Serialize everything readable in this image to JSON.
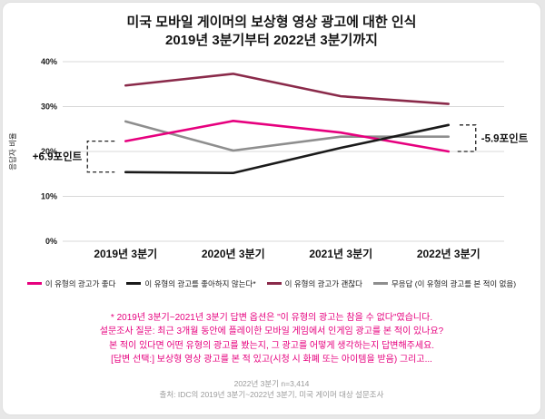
{
  "title": "미국 모바일 게이머의 보상형 영상 광고에 대한 인식",
  "subtitle": "2019년 3분기부터 2022년 3분기까지",
  "colors": {
    "accent_pink": "#e6007e",
    "source_gray": "#9a9a9a",
    "gridline": "#d8d8d8",
    "axis_text": "#1a1a1a"
  },
  "chart_data": {
    "type": "line",
    "categories": [
      "2019년 3분기",
      "2020년 3분기",
      "2021년 3분기",
      "2022년 3분기"
    ],
    "series": [
      {
        "name": "이 유형의 광고가 좋다",
        "color": "#e6007e",
        "values": [
          22.3,
          26.8,
          24.2,
          20.0
        ]
      },
      {
        "name": "이 유형의 광고를 좋아하지 않는다*",
        "color": "#1a1a1a",
        "values": [
          15.4,
          15.2,
          20.8,
          25.9
        ]
      },
      {
        "name": "이 유형의 광고가 괜찮다",
        "color": "#8a2a4a",
        "values": [
          34.7,
          37.3,
          32.3,
          30.6
        ]
      },
      {
        "name": "무응답 (이 유형의 광고를 본 적이 없음)",
        "color": "#8e8e8e",
        "values": [
          26.7,
          20.2,
          23.3,
          23.3
        ]
      }
    ],
    "ylabel": "응답자 비율",
    "xlabel": "",
    "ylim": [
      0,
      40
    ],
    "yticks": [
      "0%",
      "10%",
      "20%",
      "30%",
      "40%"
    ],
    "grid": "horizontal",
    "legend_position": "bottom",
    "annotations": [
      {
        "text": "+6.9포인트",
        "side": "left",
        "series": [
          0,
          1
        ]
      },
      {
        "text": "-5.9포인트",
        "side": "right",
        "series": [
          0,
          1
        ]
      }
    ]
  },
  "footnote_lines": [
    "* 2019년 3분기~2021년 3분기 답변 옵션은 \"이 유형의 광고는 참을 수 없다\"였습니다.",
    "설문조사 질문: 최근 3개월 동안에 플레이한 모바일 게임에서 인게임 광고를 본 적이 있나요?",
    "본 적이 있다면 어떤 유형의 광고를 봤는지, 그 광고를 어떻게 생각하는지 답변해주세요.",
    "[답변 선택:] 보상형 영상 광고를 본 적 있고(시청 시 화폐 또는 아이템을 받음) 그리고..."
  ],
  "source_lines": [
    "2022년 3분기 n=3,414",
    "출처: IDC의 2019년 3분기~2022년 3분기, 미국 게이머 대상 설문조사"
  ]
}
